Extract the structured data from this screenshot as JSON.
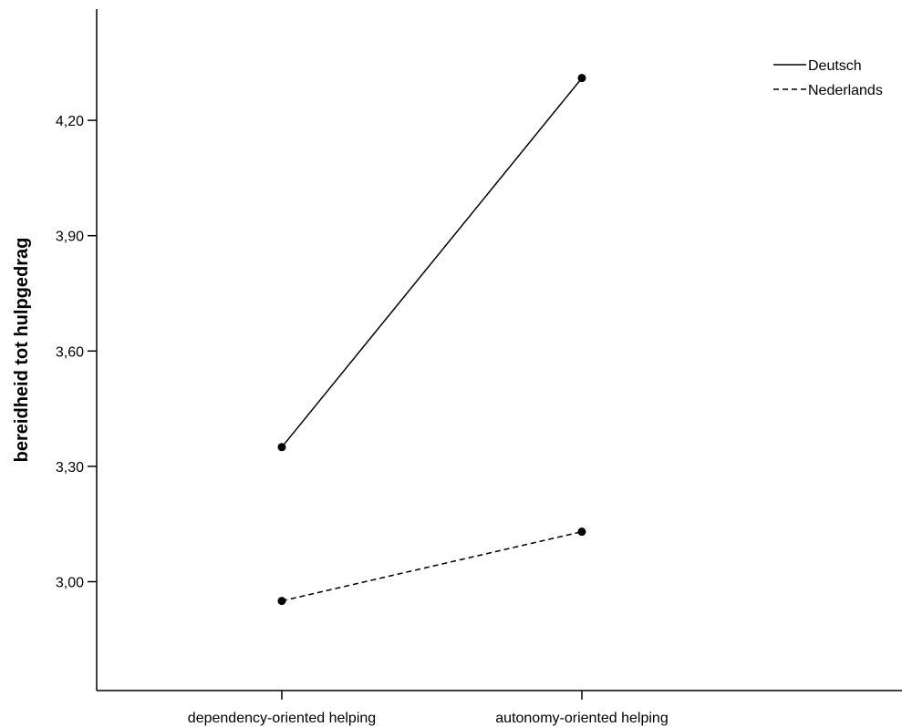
{
  "chart_data": {
    "type": "line",
    "title": "",
    "xlabel": "",
    "ylabel": "bereidheid tot hulpgedrag",
    "categories": [
      "dependency-oriented helping",
      "autonomy-oriented helping"
    ],
    "ylim": [
      2.72,
      4.5
    ],
    "yticks": [
      "3,00",
      "3,30",
      "3,60",
      "3,90",
      "4,20"
    ],
    "ytick_values": [
      3.0,
      3.3,
      3.6,
      3.9,
      4.2
    ],
    "grid": false,
    "legend_position": "top-right",
    "series": [
      {
        "name": "Deutsch",
        "values": [
          3.35,
          4.31
        ],
        "line_style": "solid",
        "color": "#000000"
      },
      {
        "name": "Nederlands",
        "values": [
          2.95,
          3.13
        ],
        "line_style": "dashed",
        "color": "#000000"
      }
    ]
  }
}
